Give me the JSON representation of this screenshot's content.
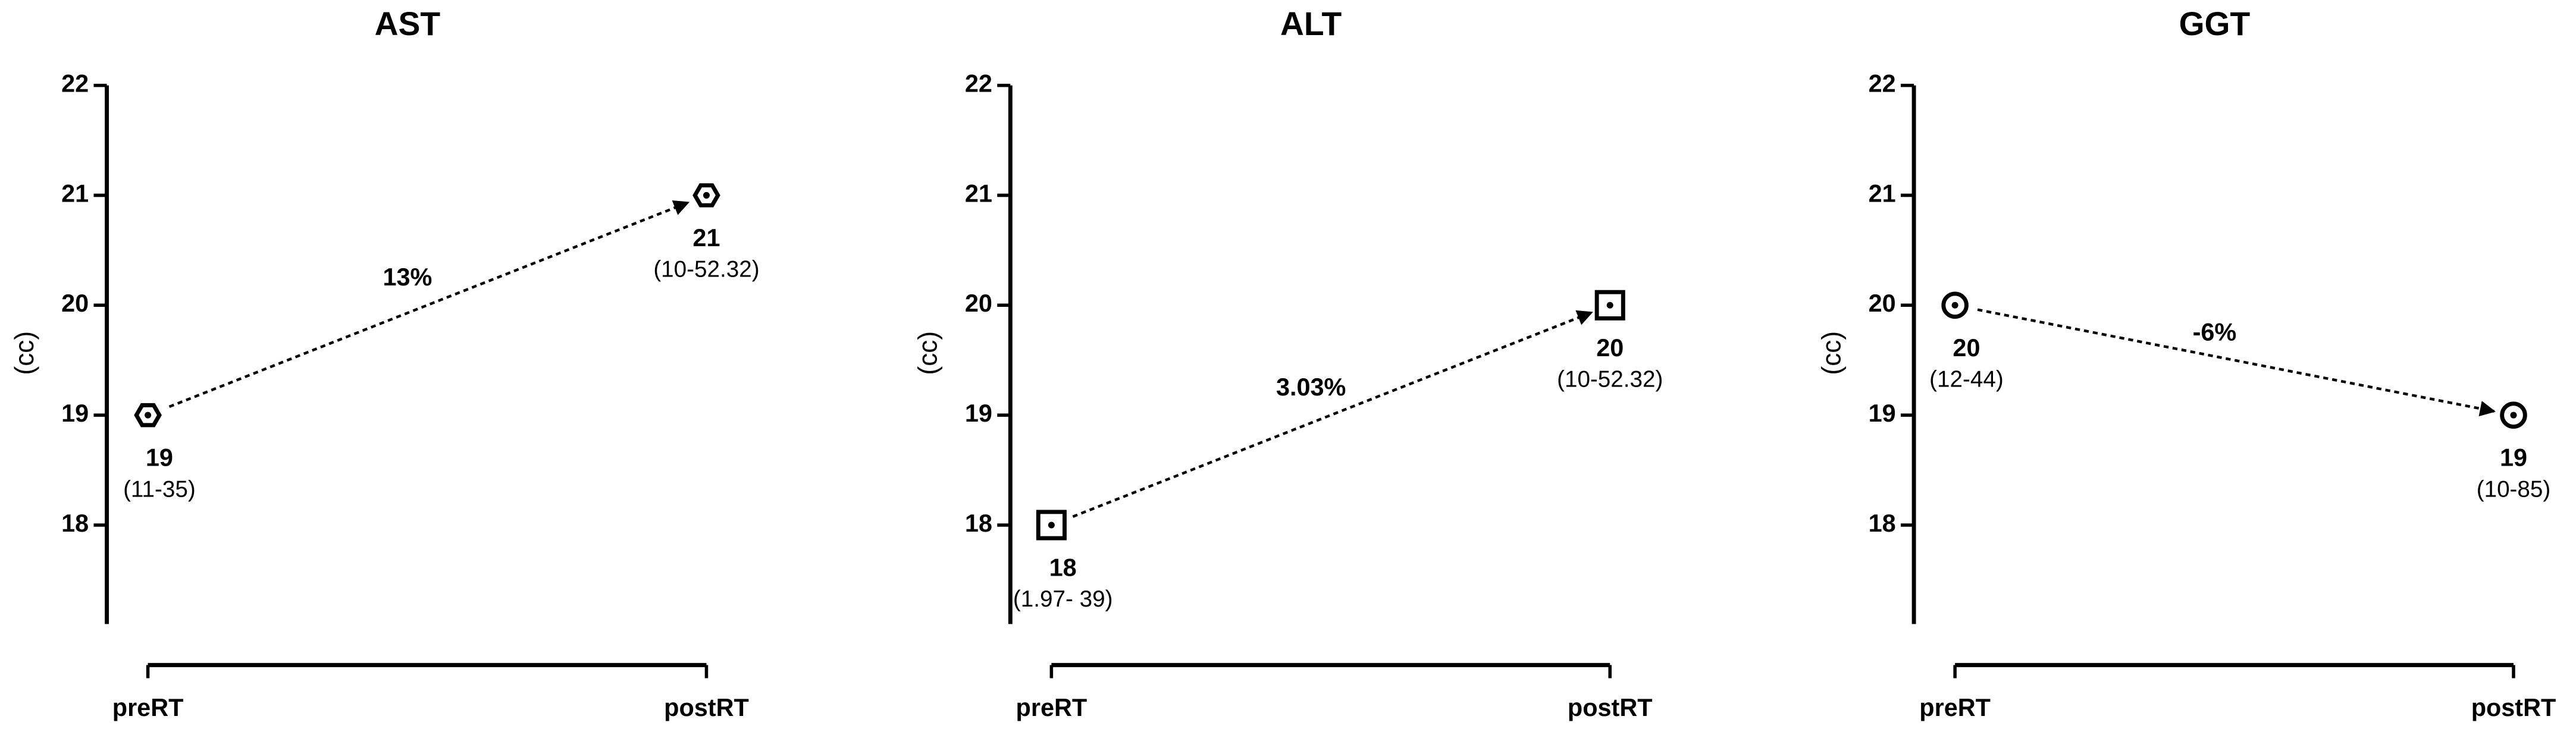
{
  "chart_data": [
    {
      "type": "line",
      "title": "AST",
      "ylabel": "(cc)",
      "categories": [
        "preRT",
        "postRT"
      ],
      "values": [
        19,
        21
      ],
      "ranges": [
        "(11-35)",
        "(10-52.32)"
      ],
      "change_label": "13%",
      "marker": "hexagon",
      "color": "#000000",
      "ylim": [
        17.1,
        22
      ],
      "yticks": [
        18,
        19,
        20,
        21,
        22
      ]
    },
    {
      "type": "line",
      "title": "ALT",
      "ylabel": "(cc)",
      "categories": [
        "preRT",
        "postRT"
      ],
      "values": [
        18,
        20
      ],
      "ranges": [
        "(1.97- 39)",
        "(10-52.32)"
      ],
      "change_label": "3.03%",
      "marker": "square",
      "color": "#000000",
      "ylim": [
        17.1,
        22
      ],
      "yticks": [
        18,
        19,
        20,
        21,
        22
      ]
    },
    {
      "type": "line",
      "title": "GGT",
      "ylabel": "(cc)",
      "categories": [
        "preRT",
        "postRT"
      ],
      "values": [
        20,
        19
      ],
      "ranges": [
        "(12-44)",
        "(10-85)"
      ],
      "change_label": "-6%",
      "marker": "circle",
      "color": "#000000",
      "ylim": [
        17.1,
        22
      ],
      "yticks": [
        18,
        19,
        20,
        21,
        22
      ]
    }
  ]
}
